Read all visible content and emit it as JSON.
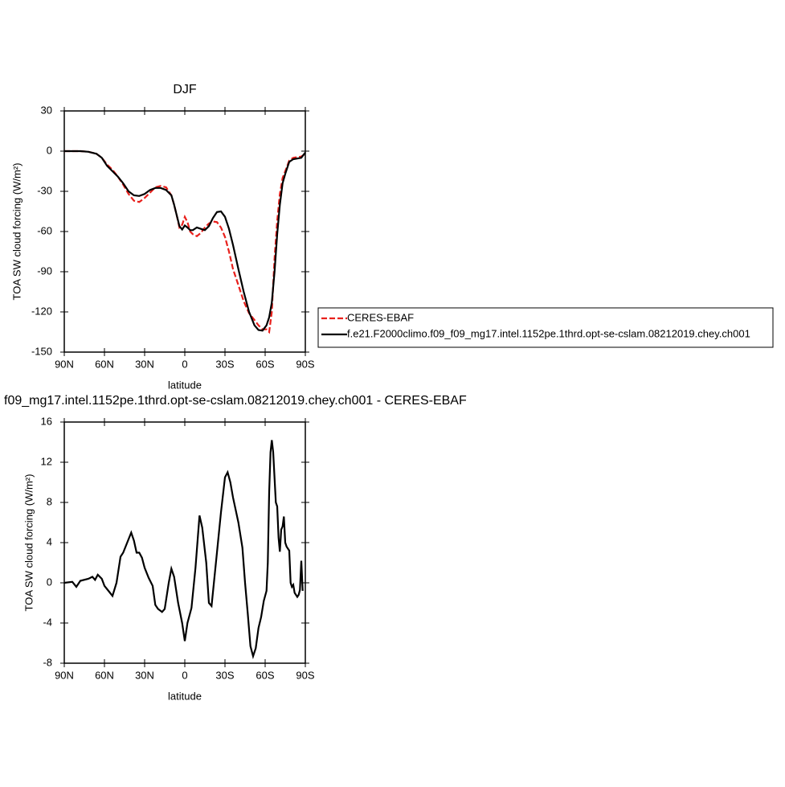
{
  "chart_data": [
    {
      "type": "line",
      "title": "DJF",
      "xlabel": "latitude",
      "ylabel": "TOA SW cloud forcing (W/m²)",
      "x": [
        90,
        84,
        78,
        72,
        66,
        62,
        58,
        54,
        50,
        46,
        42,
        38,
        34,
        30,
        26,
        22,
        18,
        14,
        10,
        8,
        6,
        4,
        2,
        0,
        -2,
        -4,
        -6,
        -9,
        -12,
        -15,
        -18,
        -21,
        -24,
        -27,
        -30,
        -33,
        -36,
        -40,
        -44,
        -48,
        -52,
        -55,
        -58,
        -61,
        -63,
        -65,
        -67,
        -69,
        -71,
        -73,
        -75,
        -78,
        -81,
        -84,
        -87,
        -90
      ],
      "series": [
        {
          "name": "CERES-EBAF",
          "color": "#e8201c",
          "dashed": true,
          "values": [
            0,
            0,
            0,
            -0.5,
            -2,
            -5,
            -10,
            -14,
            -19,
            -25,
            -32,
            -37,
            -38,
            -35,
            -31,
            -27,
            -26,
            -27,
            -33,
            -40,
            -48,
            -57,
            -55,
            -49,
            -53,
            -60,
            -62,
            -63.5,
            -61,
            -57,
            -54,
            -52.5,
            -53,
            -57,
            -64,
            -75,
            -88,
            -100,
            -112,
            -121,
            -126,
            -130,
            -133,
            -133,
            -135,
            -120,
            -80,
            -52,
            -32,
            -20,
            -15,
            -7,
            -5,
            -4.5,
            -4,
            -2
          ]
        },
        {
          "name": "f.e21.F2000climo.f09_f09_mg17.intel.1152pe.1thrd.opt-se-cslam.08212019.chey.ch001",
          "color": "#000000",
          "dashed": false,
          "values": [
            0,
            0,
            0,
            -0.5,
            -2,
            -5,
            -11,
            -15,
            -19,
            -24,
            -30,
            -33,
            -33.5,
            -32,
            -29,
            -27.5,
            -27.5,
            -29,
            -33,
            -40,
            -48,
            -56,
            -58.5,
            -55.5,
            -57,
            -59,
            -59,
            -57,
            -58,
            -59,
            -56,
            -50,
            -45.5,
            -45,
            -49,
            -58,
            -70,
            -88,
            -105,
            -120,
            -130,
            -133.5,
            -134,
            -130,
            -124,
            -113,
            -90,
            -62,
            -40,
            -24,
            -17,
            -8,
            -6,
            -5.5,
            -5,
            -1
          ]
        }
      ],
      "xlim": [
        90,
        -90
      ],
      "xticks": [
        {
          "value": 90,
          "label": "90N"
        },
        {
          "value": 60,
          "label": "60N"
        },
        {
          "value": 30,
          "label": "30N"
        },
        0,
        {
          "value": -30,
          "label": "30S"
        },
        {
          "value": -60,
          "label": "60S"
        },
        {
          "value": -90,
          "label": "90S"
        }
      ],
      "ylim": [
        -150,
        30
      ],
      "yticks": [
        30,
        0,
        -30,
        -60,
        -90,
        -120,
        -150
      ],
      "legend": "right"
    },
    {
      "type": "line",
      "title": "f09_mg17.intel.1152pe.1thrd.opt-se-cslam.08212019.chey.ch001 - CERES-EBAF",
      "xlabel": "latitude",
      "ylabel": "TOA SW cloud forcing (W/m²)",
      "x": [
        90,
        84,
        81,
        78,
        72,
        69,
        67,
        65,
        62,
        60,
        57,
        54,
        51,
        48,
        46,
        43,
        40,
        38,
        36,
        34,
        32,
        30,
        27,
        24,
        22,
        20,
        17,
        15,
        12,
        10,
        8,
        5,
        2,
        0,
        -2,
        -5,
        -8,
        -11,
        -13,
        -16,
        -18,
        -20,
        -24,
        -27,
        -30,
        -32,
        -34,
        -36,
        -40,
        -43,
        -45,
        -47,
        -49,
        -51,
        -53,
        -55,
        -57,
        -59,
        -61,
        -62,
        -63,
        -64,
        -65,
        -66,
        -68,
        -69,
        -70,
        -71,
        -72,
        -73,
        -74,
        -75,
        -76,
        -78,
        -79,
        -80,
        -81,
        -82,
        -84,
        -85,
        -86,
        -87,
        -88
      ],
      "values": [
        0,
        0.1,
        -0.4,
        0.2,
        0.4,
        0.6,
        0.3,
        0.8,
        0.4,
        -0.3,
        -0.8,
        -1.3,
        0,
        2.6,
        3,
        4,
        5,
        4.2,
        3,
        3,
        2.5,
        1.5,
        0.5,
        -0.3,
        -2.2,
        -2.6,
        -2.9,
        -2.6,
        0,
        1.4,
        0.6,
        -2,
        -4,
        -5.8,
        -4,
        -2.5,
        1.5,
        6.7,
        5.5,
        2,
        -2,
        -2.3,
        3,
        7,
        10.5,
        11,
        10,
        8.5,
        6,
        3.5,
        0,
        -3,
        -6.3,
        -7.3,
        -6.5,
        -4.5,
        -3.4,
        -1.8,
        -0.8,
        2,
        9,
        13,
        14.2,
        13,
        8,
        7.6,
        4.5,
        3.1,
        5.3,
        5.6,
        6.6,
        4,
        3.6,
        3.2,
        0,
        -0.4,
        -0.2,
        -1,
        -1.4,
        -1.2,
        -0.7,
        2.2,
        -0.8
      ],
      "color": "#000000",
      "xlim": [
        90,
        -90
      ],
      "xticks": [
        {
          "value": 90,
          "label": "90N"
        },
        {
          "value": 60,
          "label": "60N"
        },
        {
          "value": 30,
          "label": "30N"
        },
        0,
        {
          "value": -30,
          "label": "30S"
        },
        {
          "value": -60,
          "label": "60S"
        },
        {
          "value": -90,
          "label": "90S"
        }
      ],
      "ylim": [
        -8,
        16
      ],
      "yticks": [
        16,
        12,
        8,
        4,
        0,
        -4,
        -8
      ]
    }
  ]
}
